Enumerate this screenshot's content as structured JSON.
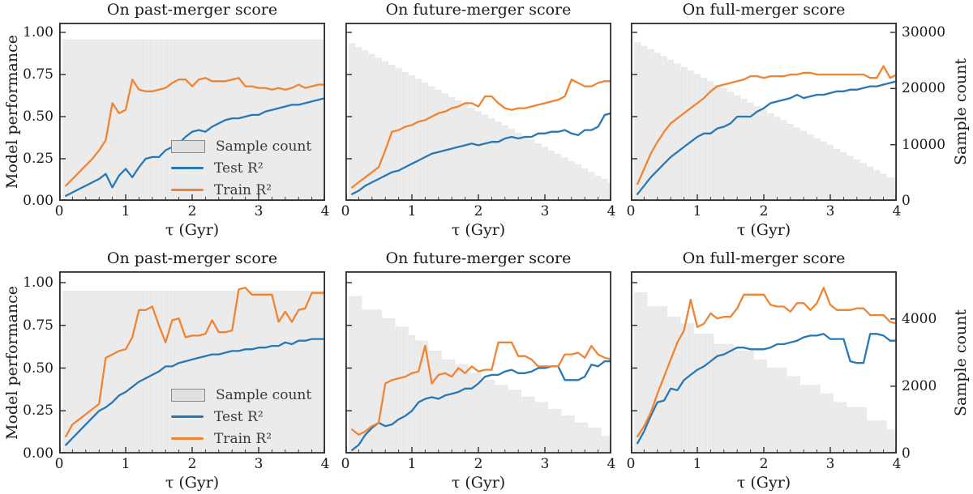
{
  "figure": {
    "x_label": "τ (Gyr)",
    "y_label_left": "Model performance",
    "y_label_right": "Sample count"
  },
  "colors": {
    "train": "#f08433",
    "test": "#2878b5",
    "hist_fill": "#ebebeb",
    "hist_edge": "#e0e0e0",
    "spine": "#2c2c2c",
    "legend_text": "#3a3a3a"
  },
  "legend": {
    "items": [
      {
        "label": "Sample count",
        "type": "patch"
      },
      {
        "label": "Test R²",
        "type": "line",
        "series": "test"
      },
      {
        "label": "Train R²",
        "type": "line",
        "series": "train"
      }
    ]
  },
  "axes": {
    "x_label": "τ (Gyr)",
    "xlim": [
      0,
      4
    ],
    "ylim_left": [
      0,
      1.05
    ],
    "x_tick_values": [
      0,
      1,
      2,
      3,
      4
    ],
    "x_tick_labels": [
      "0",
      "1",
      "2",
      "3",
      "4"
    ],
    "x_minor_step": 0.2,
    "y_tick_values": [
      0,
      0.25,
      0.5,
      0.75,
      1.0
    ],
    "y_tick_labels": [
      "0.00",
      "0.25",
      "0.50",
      "0.75",
      "1.00"
    ],
    "grid": false,
    "right_axis": [
      {
        "axis_max": 30000,
        "tick_values": [
          0,
          10000,
          20000,
          30000
        ],
        "tick_labels": [
          "0",
          "10000",
          "20000",
          "30000"
        ]
      },
      {
        "axis_max": 5080,
        "tick_values": [
          0,
          2000,
          4000
        ],
        "tick_labels": [
          "0",
          "2000",
          "4000"
        ]
      }
    ]
  },
  "chart_data": [
    {
      "type": "line+bar",
      "row": 0,
      "col": 0,
      "title": "On past-merger score",
      "x": [
        0.1,
        0.2,
        0.3,
        0.4,
        0.5,
        0.6,
        0.7,
        0.8,
        0.9,
        1.0,
        1.1,
        1.2,
        1.3,
        1.4,
        1.5,
        1.6,
        1.7,
        1.8,
        1.9,
        2.0,
        2.1,
        2.2,
        2.3,
        2.4,
        2.5,
        2.6,
        2.7,
        2.8,
        2.9,
        3.0,
        3.1,
        3.2,
        3.3,
        3.4,
        3.5,
        3.6,
        3.7,
        3.8,
        3.9,
        4.0
      ],
      "sample_count": [
        28700,
        28700,
        28700,
        28700,
        28700,
        28700,
        28700,
        28700,
        28700,
        28700,
        28700,
        28700,
        28700,
        28700,
        28700,
        28700,
        28700,
        28700,
        28700,
        28700,
        28700,
        28700,
        28700,
        28700,
        28700,
        28700,
        28700,
        28700,
        28700,
        28700,
        28700,
        28700,
        28700,
        28700,
        28700,
        28700,
        28700,
        28700,
        28700,
        28700
      ],
      "train_r2": [
        0.09,
        0.13,
        0.17,
        0.21,
        0.25,
        0.3,
        0.36,
        0.58,
        0.52,
        0.54,
        0.72,
        0.66,
        0.65,
        0.65,
        0.66,
        0.67,
        0.7,
        0.72,
        0.72,
        0.68,
        0.72,
        0.73,
        0.71,
        0.71,
        0.71,
        0.72,
        0.73,
        0.68,
        0.68,
        0.67,
        0.67,
        0.66,
        0.67,
        0.66,
        0.67,
        0.69,
        0.67,
        0.68,
        0.69,
        0.69
      ],
      "test_r2": [
        0.03,
        0.05,
        0.07,
        0.09,
        0.11,
        0.13,
        0.16,
        0.08,
        0.15,
        0.19,
        0.14,
        0.2,
        0.25,
        0.26,
        0.26,
        0.3,
        0.32,
        0.34,
        0.38,
        0.41,
        0.42,
        0.41,
        0.44,
        0.46,
        0.48,
        0.49,
        0.49,
        0.5,
        0.51,
        0.51,
        0.53,
        0.54,
        0.55,
        0.56,
        0.57,
        0.57,
        0.58,
        0.59,
        0.6,
        0.61
      ]
    },
    {
      "type": "line+bar",
      "row": 0,
      "col": 1,
      "title": "On future-merger score",
      "x": [
        0.1,
        0.2,
        0.3,
        0.4,
        0.5,
        0.6,
        0.7,
        0.8,
        0.9,
        1.0,
        1.1,
        1.2,
        1.3,
        1.4,
        1.5,
        1.6,
        1.7,
        1.8,
        1.9,
        2.0,
        2.1,
        2.2,
        2.3,
        2.4,
        2.5,
        2.6,
        2.7,
        2.8,
        2.9,
        3.0,
        3.1,
        3.2,
        3.3,
        3.4,
        3.5,
        3.6,
        3.7,
        3.8,
        3.9,
        4.0
      ],
      "sample_count": [
        28000,
        27350,
        26700,
        26100,
        25450,
        24800,
        24200,
        23550,
        22900,
        22300,
        21650,
        21000,
        20350,
        19750,
        19100,
        18450,
        17850,
        17200,
        16550,
        15900,
        15300,
        14650,
        14000,
        13400,
        12750,
        12100,
        11450,
        10850,
        10200,
        9550,
        8900,
        8300,
        7650,
        7000,
        6400,
        5750,
        5100,
        4450,
        3850,
        3200
      ],
      "train_r2": [
        0.08,
        0.11,
        0.14,
        0.17,
        0.2,
        0.3,
        0.41,
        0.42,
        0.44,
        0.45,
        0.47,
        0.48,
        0.5,
        0.52,
        0.53,
        0.55,
        0.56,
        0.58,
        0.58,
        0.56,
        0.62,
        0.62,
        0.58,
        0.55,
        0.54,
        0.55,
        0.55,
        0.56,
        0.57,
        0.58,
        0.59,
        0.6,
        0.62,
        0.72,
        0.7,
        0.68,
        0.68,
        0.7,
        0.71,
        0.71
      ],
      "test_r2": [
        0.04,
        0.06,
        0.09,
        0.11,
        0.13,
        0.15,
        0.17,
        0.18,
        0.2,
        0.22,
        0.24,
        0.26,
        0.28,
        0.29,
        0.3,
        0.31,
        0.32,
        0.33,
        0.34,
        0.33,
        0.34,
        0.35,
        0.35,
        0.37,
        0.38,
        0.37,
        0.38,
        0.38,
        0.4,
        0.4,
        0.41,
        0.41,
        0.42,
        0.4,
        0.39,
        0.42,
        0.42,
        0.44,
        0.51,
        0.52
      ]
    },
    {
      "type": "line+bar",
      "row": 0,
      "col": 2,
      "title": "On full-merger score",
      "x": [
        0.1,
        0.2,
        0.3,
        0.4,
        0.5,
        0.6,
        0.7,
        0.8,
        0.9,
        1.0,
        1.1,
        1.2,
        1.3,
        1.4,
        1.5,
        1.6,
        1.7,
        1.8,
        1.9,
        2.0,
        2.1,
        2.2,
        2.3,
        2.4,
        2.5,
        2.6,
        2.7,
        2.8,
        2.9,
        3.0,
        3.1,
        3.2,
        3.3,
        3.4,
        3.5,
        3.6,
        3.7,
        3.8,
        3.9,
        4.0
      ],
      "sample_count": [
        28200,
        27550,
        26950,
        26300,
        25700,
        25050,
        24400,
        23800,
        23150,
        22500,
        21900,
        21250,
        20600,
        20000,
        19350,
        18700,
        18100,
        17450,
        16800,
        16200,
        15550,
        14900,
        14300,
        13650,
        13000,
        12400,
        11750,
        11100,
        10500,
        9850,
        9200,
        8600,
        7950,
        7300,
        6700,
        6050,
        5400,
        4750,
        4100,
        4100
      ],
      "train_r2": [
        0.1,
        0.19,
        0.28,
        0.35,
        0.41,
        0.46,
        0.49,
        0.52,
        0.55,
        0.58,
        0.61,
        0.65,
        0.68,
        0.69,
        0.7,
        0.71,
        0.72,
        0.74,
        0.74,
        0.73,
        0.74,
        0.74,
        0.74,
        0.75,
        0.75,
        0.76,
        0.76,
        0.75,
        0.75,
        0.75,
        0.75,
        0.75,
        0.75,
        0.75,
        0.75,
        0.73,
        0.73,
        0.8,
        0.73,
        0.75
      ],
      "test_r2": [
        0.04,
        0.09,
        0.14,
        0.18,
        0.22,
        0.26,
        0.29,
        0.32,
        0.35,
        0.38,
        0.4,
        0.4,
        0.43,
        0.44,
        0.46,
        0.5,
        0.5,
        0.5,
        0.53,
        0.55,
        0.58,
        0.59,
        0.6,
        0.61,
        0.63,
        0.61,
        0.62,
        0.63,
        0.63,
        0.64,
        0.65,
        0.65,
        0.66,
        0.66,
        0.67,
        0.68,
        0.68,
        0.69,
        0.7,
        0.71
      ]
    },
    {
      "type": "line+bar",
      "row": 1,
      "col": 0,
      "title": "On past-merger score",
      "x": [
        0.1,
        0.2,
        0.3,
        0.4,
        0.5,
        0.6,
        0.7,
        0.8,
        0.9,
        1.0,
        1.1,
        1.2,
        1.3,
        1.4,
        1.5,
        1.6,
        1.7,
        1.8,
        1.9,
        2.0,
        2.1,
        2.2,
        2.3,
        2.4,
        2.5,
        2.6,
        2.7,
        2.8,
        2.9,
        3.0,
        3.1,
        3.2,
        3.3,
        3.4,
        3.5,
        3.6,
        3.7,
        3.8,
        3.9,
        4.0
      ],
      "sample_count": [
        4830,
        4830,
        4830,
        4830,
        4830,
        4830,
        4830,
        4830,
        4830,
        4830,
        4830,
        4830,
        4830,
        4830,
        4830,
        4830,
        4830,
        4830,
        4830,
        4830,
        4830,
        4830,
        4830,
        4830,
        4830,
        4830,
        4830,
        4830,
        4830,
        4830,
        4830,
        4830,
        4830,
        4830,
        4830,
        4830,
        4830,
        4830,
        4830,
        4830
      ],
      "train_r2": [
        0.1,
        0.17,
        0.2,
        0.23,
        0.26,
        0.29,
        0.56,
        0.58,
        0.6,
        0.61,
        0.68,
        0.84,
        0.84,
        0.86,
        0.75,
        0.65,
        0.78,
        0.79,
        0.68,
        0.69,
        0.69,
        0.7,
        0.78,
        0.71,
        0.71,
        0.72,
        0.96,
        0.97,
        0.93,
        0.93,
        0.93,
        0.93,
        0.77,
        0.83,
        0.77,
        0.84,
        0.85,
        0.94,
        0.94,
        0.94
      ],
      "test_r2": [
        0.05,
        0.09,
        0.13,
        0.17,
        0.21,
        0.25,
        0.27,
        0.3,
        0.34,
        0.36,
        0.39,
        0.42,
        0.44,
        0.46,
        0.48,
        0.51,
        0.51,
        0.53,
        0.54,
        0.55,
        0.56,
        0.57,
        0.58,
        0.58,
        0.59,
        0.6,
        0.6,
        0.61,
        0.61,
        0.62,
        0.62,
        0.63,
        0.63,
        0.65,
        0.64,
        0.66,
        0.66,
        0.67,
        0.67,
        0.67
      ]
    },
    {
      "type": "line+bar",
      "row": 1,
      "col": 1,
      "title": "On future-merger score",
      "x": [
        0.1,
        0.2,
        0.3,
        0.4,
        0.5,
        0.6,
        0.7,
        0.8,
        0.9,
        1.0,
        1.1,
        1.2,
        1.3,
        1.4,
        1.5,
        1.6,
        1.7,
        1.8,
        1.9,
        2.0,
        2.1,
        2.2,
        2.3,
        2.4,
        2.5,
        2.6,
        2.7,
        2.8,
        2.9,
        3.0,
        3.1,
        3.2,
        3.3,
        3.4,
        3.5,
        3.6,
        3.7,
        3.8,
        3.9,
        4.0
      ],
      "sample_count": [
        4670,
        4670,
        4270,
        4270,
        4270,
        4010,
        4010,
        3760,
        3760,
        3510,
        3350,
        3350,
        3050,
        3050,
        2790,
        2790,
        2640,
        2640,
        2390,
        2390,
        2180,
        2180,
        2030,
        2030,
        1880,
        1880,
        1680,
        1680,
        1520,
        1520,
        1320,
        1320,
        1120,
        1120,
        910,
        910,
        760,
        760,
        510,
        510
      ],
      "train_r2": [
        0.14,
        0.11,
        0.13,
        0.16,
        0.18,
        0.41,
        0.43,
        0.44,
        0.45,
        0.47,
        0.48,
        0.63,
        0.41,
        0.46,
        0.47,
        0.45,
        0.5,
        0.47,
        0.51,
        0.48,
        0.49,
        0.49,
        0.65,
        0.65,
        0.65,
        0.57,
        0.57,
        0.55,
        0.51,
        0.51,
        0.51,
        0.51,
        0.58,
        0.58,
        0.59,
        0.56,
        0.63,
        0.58,
        0.56,
        0.55
      ],
      "test_r2": [
        0.02,
        0.05,
        0.11,
        0.15,
        0.18,
        0.16,
        0.17,
        0.2,
        0.22,
        0.25,
        0.3,
        0.32,
        0.33,
        0.32,
        0.34,
        0.35,
        0.36,
        0.38,
        0.38,
        0.41,
        0.45,
        0.46,
        0.46,
        0.48,
        0.49,
        0.47,
        0.47,
        0.48,
        0.5,
        0.5,
        0.51,
        0.51,
        0.43,
        0.43,
        0.43,
        0.45,
        0.52,
        0.51,
        0.54,
        0.54
      ]
    },
    {
      "type": "line+bar",
      "row": 1,
      "col": 2,
      "title": "On full-merger score",
      "x": [
        0.1,
        0.2,
        0.3,
        0.4,
        0.5,
        0.6,
        0.7,
        0.8,
        0.9,
        1.0,
        1.1,
        1.2,
        1.3,
        1.4,
        1.5,
        1.6,
        1.7,
        1.8,
        1.9,
        2.0,
        2.1,
        2.2,
        2.3,
        2.4,
        2.5,
        2.6,
        2.7,
        2.8,
        2.9,
        3.0,
        3.1,
        3.2,
        3.3,
        3.4,
        3.5,
        3.6,
        3.7,
        3.8,
        3.9,
        4.0
      ],
      "sample_count": [
        4780,
        4780,
        4370,
        4370,
        4370,
        4060,
        4060,
        3860,
        3860,
        3560,
        3560,
        3560,
        3250,
        3250,
        3250,
        3050,
        3050,
        3050,
        2790,
        2790,
        2540,
        2540,
        2540,
        2290,
        2290,
        2030,
        2030,
        2030,
        1780,
        1780,
        1520,
        1520,
        1370,
        1370,
        1370,
        970,
        970,
        970,
        710,
        710
      ],
      "train_r2": [
        0.1,
        0.16,
        0.24,
        0.35,
        0.45,
        0.55,
        0.65,
        0.72,
        0.9,
        0.74,
        0.76,
        0.82,
        0.79,
        0.8,
        0.8,
        0.85,
        0.93,
        0.93,
        0.93,
        0.93,
        0.87,
        0.86,
        0.86,
        0.83,
        0.88,
        0.88,
        0.84,
        0.88,
        0.97,
        0.87,
        0.84,
        0.84,
        0.84,
        0.85,
        0.85,
        0.81,
        0.81,
        0.81,
        0.77,
        0.76
      ],
      "test_r2": [
        0.06,
        0.13,
        0.22,
        0.3,
        0.31,
        0.38,
        0.37,
        0.43,
        0.46,
        0.49,
        0.51,
        0.54,
        0.57,
        0.58,
        0.6,
        0.62,
        0.62,
        0.61,
        0.61,
        0.61,
        0.62,
        0.64,
        0.64,
        0.65,
        0.66,
        0.68,
        0.69,
        0.69,
        0.7,
        0.67,
        0.67,
        0.67,
        0.54,
        0.53,
        0.53,
        0.7,
        0.7,
        0.69,
        0.66,
        0.66
      ]
    }
  ]
}
